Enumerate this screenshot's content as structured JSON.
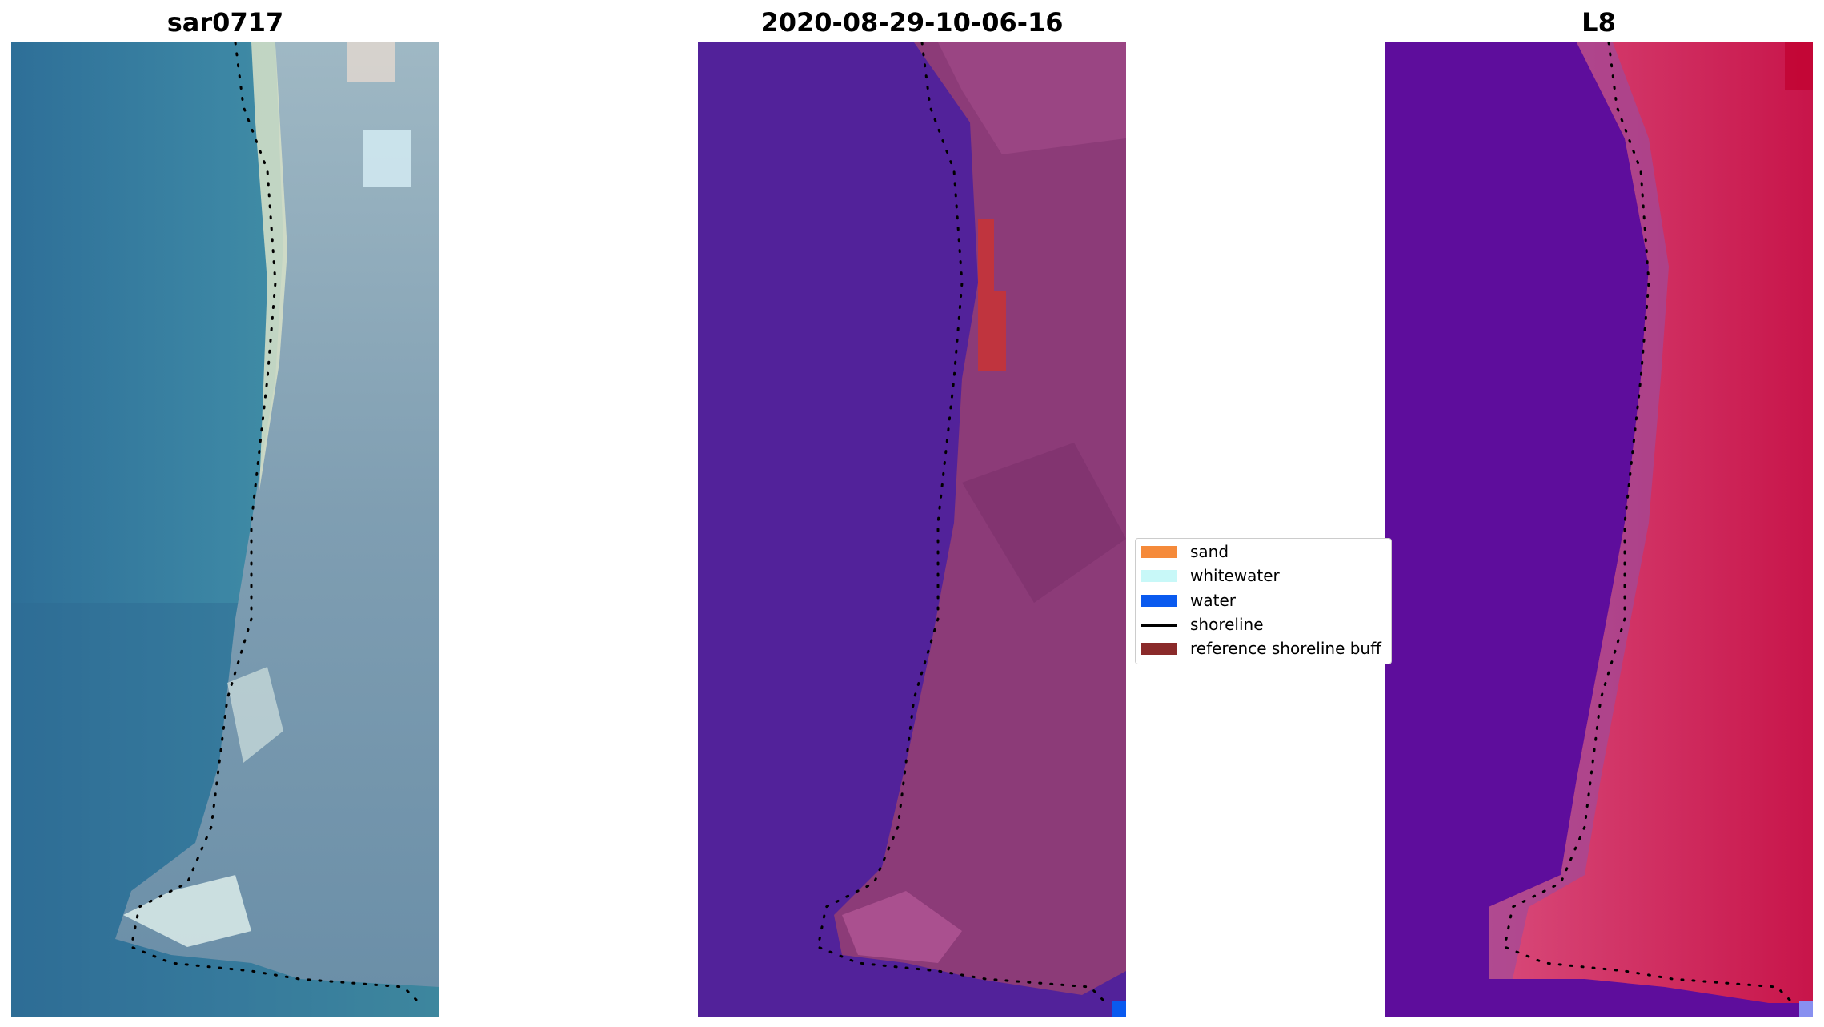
{
  "panels": [
    {
      "title": "sar0717",
      "bands": "true-color"
    },
    {
      "title": "2020-08-29-10-06-16",
      "bands": "classified"
    },
    {
      "title": "L8",
      "bands": "false-color"
    }
  ],
  "legend": {
    "items": [
      {
        "label": "sand",
        "color": "#f58a3a",
        "kind": "patch"
      },
      {
        "label": "whitewater",
        "color": "#c8f8f8",
        "kind": "patch"
      },
      {
        "label": "water",
        "color": "#0a5aef",
        "kind": "patch"
      },
      {
        "label": "shoreline",
        "color": "#000000",
        "kind": "line"
      },
      {
        "label": "reference shoreline buff",
        "color": "#8a2a2a",
        "kind": "patch"
      }
    ]
  },
  "colors": {
    "sea_true": "#3c86a4",
    "land_true": "#8aa6b6",
    "sea_class": "#52229a",
    "land_class": "#8c3b78",
    "sea_l8": "#5e0d9c",
    "land_l8": "#d0205a"
  }
}
